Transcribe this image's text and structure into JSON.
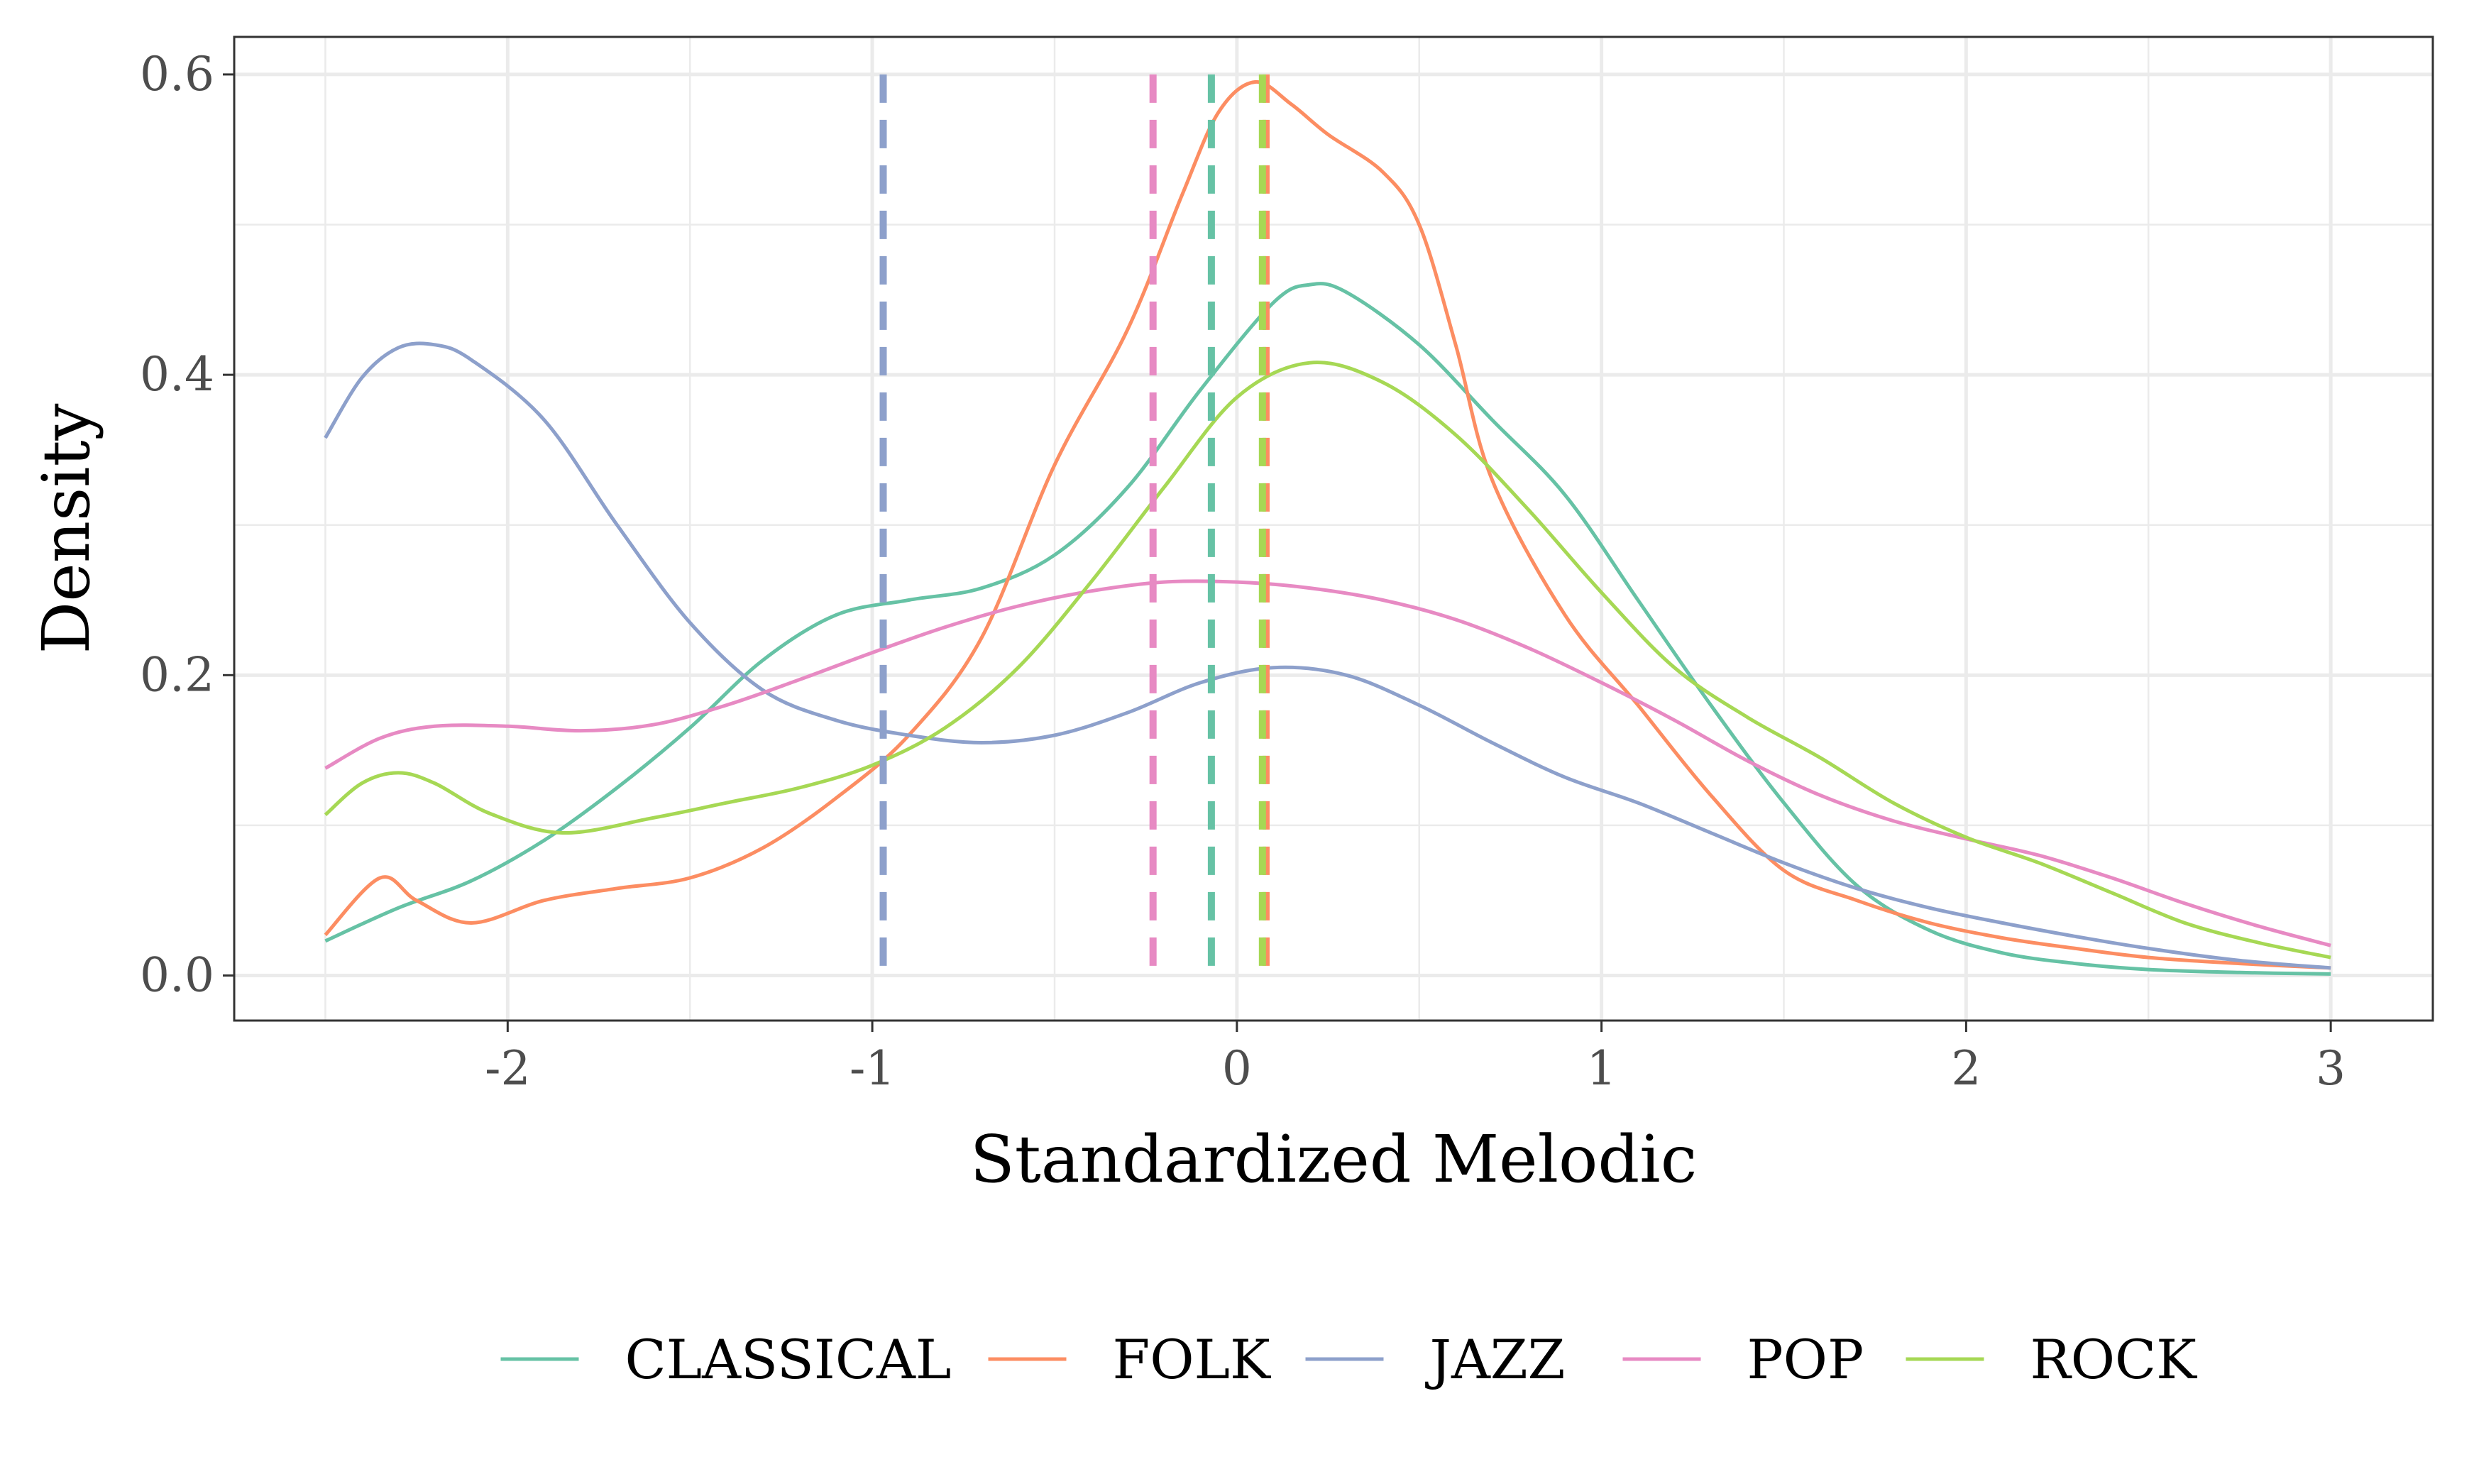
{
  "chart_data": {
    "type": "line",
    "subtype": "density",
    "xlabel": "Standardized Melodic",
    "ylabel": "Density",
    "xlim": [
      -2.75,
      3.28
    ],
    "ylim": [
      -0.03,
      0.625
    ],
    "x_ticks": [
      -2,
      -1,
      0,
      1,
      2,
      3
    ],
    "x_tick_labels": [
      "-2",
      "-1",
      "0",
      "1",
      "2",
      "3"
    ],
    "y_ticks": [
      0.0,
      0.2,
      0.4,
      0.6
    ],
    "y_tick_labels": [
      "0.0",
      "0.2",
      "0.4",
      "0.6"
    ],
    "grid": true,
    "legend_position": "bottom",
    "series": [
      {
        "name": "CLASSICAL",
        "color": "#66c2a5",
        "mean_line": -0.07,
        "points": [
          [
            -2.5,
            0.023
          ],
          [
            -2.3,
            0.045
          ],
          [
            -2.1,
            0.063
          ],
          [
            -1.9,
            0.09
          ],
          [
            -1.7,
            0.125
          ],
          [
            -1.5,
            0.165
          ],
          [
            -1.3,
            0.21
          ],
          [
            -1.1,
            0.24
          ],
          [
            -0.9,
            0.25
          ],
          [
            -0.7,
            0.258
          ],
          [
            -0.5,
            0.28
          ],
          [
            -0.3,
            0.325
          ],
          [
            -0.1,
            0.39
          ],
          [
            0.1,
            0.448
          ],
          [
            0.2,
            0.46
          ],
          [
            0.3,
            0.455
          ],
          [
            0.5,
            0.42
          ],
          [
            0.7,
            0.37
          ],
          [
            0.9,
            0.32
          ],
          [
            1.1,
            0.25
          ],
          [
            1.3,
            0.18
          ],
          [
            1.5,
            0.115
          ],
          [
            1.7,
            0.06
          ],
          [
            1.9,
            0.03
          ],
          [
            2.1,
            0.015
          ],
          [
            2.3,
            0.008
          ],
          [
            2.5,
            0.004
          ],
          [
            2.75,
            0.002
          ],
          [
            3.0,
            0.001
          ]
        ]
      },
      {
        "name": "FOLK",
        "color": "#fc8d62",
        "mean_line": 0.08,
        "points": [
          [
            -2.5,
            0.027
          ],
          [
            -2.35,
            0.065
          ],
          [
            -2.25,
            0.05
          ],
          [
            -2.1,
            0.035
          ],
          [
            -1.9,
            0.05
          ],
          [
            -1.7,
            0.058
          ],
          [
            -1.5,
            0.065
          ],
          [
            -1.3,
            0.085
          ],
          [
            -1.1,
            0.118
          ],
          [
            -0.9,
            0.16
          ],
          [
            -0.7,
            0.225
          ],
          [
            -0.5,
            0.34
          ],
          [
            -0.3,
            0.43
          ],
          [
            -0.15,
            0.52
          ],
          [
            -0.05,
            0.575
          ],
          [
            0.05,
            0.595
          ],
          [
            0.15,
            0.58
          ],
          [
            0.25,
            0.56
          ],
          [
            0.4,
            0.535
          ],
          [
            0.5,
            0.5
          ],
          [
            0.6,
            0.42
          ],
          [
            0.7,
            0.33
          ],
          [
            0.9,
            0.24
          ],
          [
            1.1,
            0.18
          ],
          [
            1.3,
            0.12
          ],
          [
            1.5,
            0.07
          ],
          [
            1.7,
            0.05
          ],
          [
            1.9,
            0.035
          ],
          [
            2.1,
            0.025
          ],
          [
            2.3,
            0.018
          ],
          [
            2.5,
            0.012
          ],
          [
            2.75,
            0.008
          ],
          [
            3.0,
            0.005
          ]
        ]
      },
      {
        "name": "JAZZ",
        "color": "#8da0cb",
        "mean_line": -0.97,
        "points": [
          [
            -2.5,
            0.358
          ],
          [
            -2.4,
            0.398
          ],
          [
            -2.3,
            0.418
          ],
          [
            -2.2,
            0.42
          ],
          [
            -2.1,
            0.41
          ],
          [
            -1.9,
            0.37
          ],
          [
            -1.7,
            0.3
          ],
          [
            -1.5,
            0.235
          ],
          [
            -1.3,
            0.19
          ],
          [
            -1.1,
            0.17
          ],
          [
            -0.9,
            0.16
          ],
          [
            -0.7,
            0.155
          ],
          [
            -0.5,
            0.16
          ],
          [
            -0.3,
            0.175
          ],
          [
            -0.1,
            0.195
          ],
          [
            0.1,
            0.205
          ],
          [
            0.3,
            0.2
          ],
          [
            0.5,
            0.18
          ],
          [
            0.7,
            0.155
          ],
          [
            0.9,
            0.132
          ],
          [
            1.1,
            0.115
          ],
          [
            1.3,
            0.095
          ],
          [
            1.5,
            0.075
          ],
          [
            1.7,
            0.058
          ],
          [
            1.9,
            0.045
          ],
          [
            2.1,
            0.035
          ],
          [
            2.3,
            0.026
          ],
          [
            2.5,
            0.018
          ],
          [
            2.75,
            0.01
          ],
          [
            3.0,
            0.005
          ]
        ]
      },
      {
        "name": "POP",
        "color": "#e78ac3",
        "mean_line": -0.23,
        "points": [
          [
            -2.5,
            0.138
          ],
          [
            -2.35,
            0.158
          ],
          [
            -2.2,
            0.166
          ],
          [
            -2.0,
            0.166
          ],
          [
            -1.8,
            0.163
          ],
          [
            -1.6,
            0.167
          ],
          [
            -1.4,
            0.18
          ],
          [
            -1.2,
            0.197
          ],
          [
            -1.0,
            0.215
          ],
          [
            -0.8,
            0.232
          ],
          [
            -0.6,
            0.246
          ],
          [
            -0.4,
            0.256
          ],
          [
            -0.2,
            0.262
          ],
          [
            0.0,
            0.262
          ],
          [
            0.2,
            0.258
          ],
          [
            0.4,
            0.25
          ],
          [
            0.6,
            0.237
          ],
          [
            0.8,
            0.218
          ],
          [
            1.0,
            0.195
          ],
          [
            1.2,
            0.17
          ],
          [
            1.4,
            0.143
          ],
          [
            1.6,
            0.12
          ],
          [
            1.8,
            0.103
          ],
          [
            2.0,
            0.091
          ],
          [
            2.2,
            0.08
          ],
          [
            2.4,
            0.065
          ],
          [
            2.6,
            0.048
          ],
          [
            2.8,
            0.033
          ],
          [
            3.0,
            0.02
          ]
        ]
      },
      {
        "name": "ROCK",
        "color": "#a6d854",
        "mean_line": 0.07,
        "points": [
          [
            -2.5,
            0.107
          ],
          [
            -2.4,
            0.128
          ],
          [
            -2.3,
            0.135
          ],
          [
            -2.2,
            0.128
          ],
          [
            -2.05,
            0.108
          ],
          [
            -1.85,
            0.095
          ],
          [
            -1.6,
            0.105
          ],
          [
            -1.4,
            0.115
          ],
          [
            -1.2,
            0.125
          ],
          [
            -1.0,
            0.14
          ],
          [
            -0.8,
            0.165
          ],
          [
            -0.6,
            0.205
          ],
          [
            -0.4,
            0.262
          ],
          [
            -0.2,
            0.325
          ],
          [
            0.0,
            0.385
          ],
          [
            0.2,
            0.408
          ],
          [
            0.4,
            0.395
          ],
          [
            0.6,
            0.36
          ],
          [
            0.8,
            0.31
          ],
          [
            1.0,
            0.255
          ],
          [
            1.2,
            0.205
          ],
          [
            1.4,
            0.172
          ],
          [
            1.6,
            0.145
          ],
          [
            1.8,
            0.115
          ],
          [
            2.0,
            0.092
          ],
          [
            2.2,
            0.075
          ],
          [
            2.4,
            0.055
          ],
          [
            2.6,
            0.035
          ],
          [
            2.8,
            0.022
          ],
          [
            3.0,
            0.012
          ]
        ]
      }
    ]
  }
}
